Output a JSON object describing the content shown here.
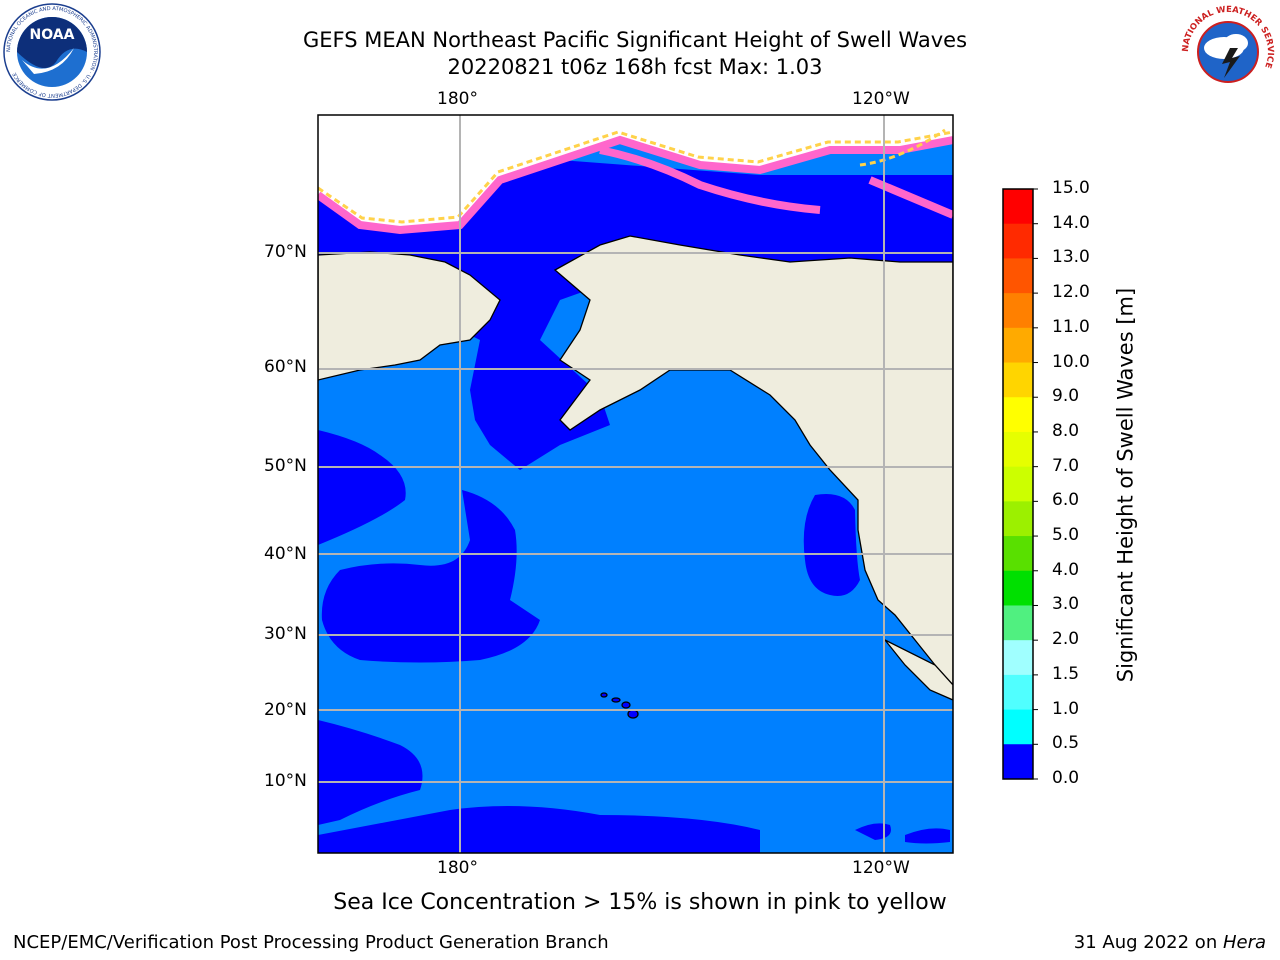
{
  "title": {
    "line1": "GEFS MEAN Northeast Pacific Significant Height of Swell Waves",
    "line2": "20220821 t06z 168h fcst   Max: 1.03"
  },
  "map": {
    "lon_labels_top": [
      "180°",
      "120°W"
    ],
    "lon_labels_bottom": [
      "180°",
      "120°W"
    ],
    "lat_labels": [
      "70°N",
      "60°N",
      "50°N",
      "40°N",
      "30°N",
      "20°N",
      "10°N"
    ],
    "colors": {
      "land": "#efedde",
      "ice_white": "#ffffff",
      "swell_0_05": "#0000ff",
      "swell_05_10": "#0080ff",
      "ice_pink": "#ff66cc",
      "ice_yellow": "#ffd24a",
      "grid": "#b4b4b4",
      "coast": "#000000"
    }
  },
  "colorbar": {
    "label": "Significant Height of Swell Waves [m]",
    "ticks": [
      "15.0",
      "14.0",
      "13.0",
      "12.0",
      "11.0",
      "10.0",
      "9.0",
      "8.0",
      "7.0",
      "6.0",
      "5.0",
      "4.0",
      "3.0",
      "2.0",
      "1.5",
      "1.0",
      "0.5",
      "0.0"
    ],
    "colors": [
      "#ff0000",
      "#ff2a00",
      "#ff5500",
      "#ff8000",
      "#ffaa00",
      "#ffd500",
      "#ffff00",
      "#e6ff00",
      "#ccff00",
      "#9cf000",
      "#59e000",
      "#00e000",
      "#50f080",
      "#a0ffff",
      "#50ffff",
      "#00ffff",
      "#0080ff",
      "#0000ff"
    ]
  },
  "note": "Sea Ice Concentration > 15% is shown in pink to yellow",
  "footer": {
    "left": "NCEP/EMC/Verification Post Processing Product Generation Branch",
    "right_prefix": "31 Aug 2022 on ",
    "right_host": "Hera"
  },
  "logos": {
    "noaa": "NOAA",
    "noaa_ring": "NATIONAL OCEANIC AND ATMOSPHERIC ADMINISTRATION · U.S. DEPARTMENT OF COMMERCE",
    "nws_ring": "NATIONAL WEATHER SERVICE"
  }
}
